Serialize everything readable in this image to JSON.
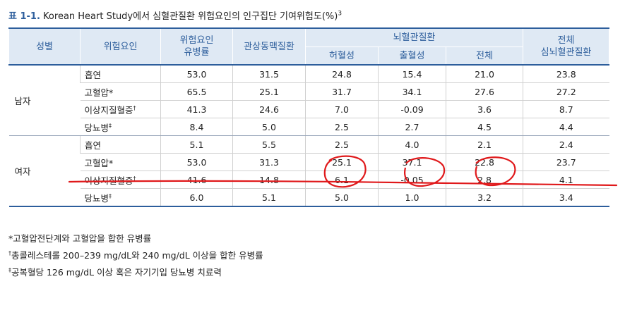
{
  "title": {
    "label": "표 1-1.",
    "text": " Korean Heart Study에서 심혈관질환 위험요인의 인구집단 기여위험도(%)",
    "note_mark": "3"
  },
  "table": {
    "headers": {
      "sex": "성별",
      "risk_factor": "위험요인",
      "prevalence_line1": "위험요인",
      "prevalence_line2": "유병률",
      "coronary": "관상동맥질환",
      "cerebro_group": "뇌혈관질환",
      "ischemic": "허혈성",
      "hemorrhagic": "출혈성",
      "cerebro_total": "전체",
      "total_line1": "전체",
      "total_line2": "심뇌혈관질환"
    },
    "groups": [
      {
        "sex": "남자",
        "rows": [
          {
            "factor": "흡연",
            "mark": "",
            "values": [
              "53.0",
              "31.5",
              "24.8",
              "15.4",
              "21.0",
              "23.8"
            ]
          },
          {
            "factor": "고혈압*",
            "mark": "",
            "values": [
              "65.5",
              "25.1",
              "31.7",
              "34.1",
              "27.6",
              "27.2"
            ]
          },
          {
            "factor": "이상지질혈증",
            "mark": "†",
            "values": [
              "41.3",
              "24.6",
              "7.0",
              "-0.09",
              "3.6",
              "8.7"
            ]
          },
          {
            "factor": "당뇨병",
            "mark": "‡",
            "values": [
              "8.4",
              "5.0",
              "2.5",
              "2.7",
              "4.5",
              "4.4"
            ]
          }
        ]
      },
      {
        "sex": "여자",
        "rows": [
          {
            "factor": "흡연",
            "mark": "",
            "values": [
              "5.1",
              "5.5",
              "2.5",
              "4.0",
              "2.1",
              "2.4"
            ]
          },
          {
            "factor": "고혈압*",
            "mark": "",
            "values": [
              "53.0",
              "31.3",
              "25.1",
              "37.1",
              "22.8",
              "23.7"
            ]
          },
          {
            "factor": "이상지질혈증",
            "mark": "†",
            "values": [
              "41.6",
              "14.8",
              "6.1",
              "-0.05",
              "2.8",
              "4.1"
            ]
          },
          {
            "factor": "당뇨병",
            "mark": "‡",
            "values": [
              "6.0",
              "5.1",
              "5.0",
              "1.0",
              "3.2",
              "3.4"
            ]
          }
        ]
      }
    ]
  },
  "notes": [
    {
      "mark": "",
      "text": "*고혈압전단계와 고혈압을 합한 유병률"
    },
    {
      "mark": "†",
      "text": "총콜레스테롤 200–239 mg/dL와 240 mg/dL 이상을 합한 유병률"
    },
    {
      "mark": "‡",
      "text": "공복혈당 126 mg/dL 이상 혹은 자기기입 당뇨병 치료력"
    }
  ],
  "annotations": {
    "color": "#e0191b",
    "circled_values": [
      "25.1",
      "37.1",
      "22.8"
    ]
  }
}
